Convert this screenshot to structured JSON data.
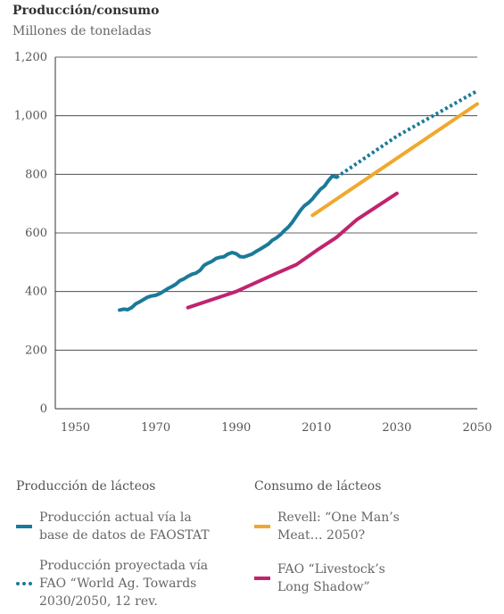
{
  "header": {
    "title": "Producción/consumo",
    "subtitle": "Millones de toneladas"
  },
  "colors": {
    "production": "#1a7a99",
    "revell": "#f0a92c",
    "fao_livestock": "#c0246e",
    "axis": "#333333",
    "grid": "#333333"
  },
  "chart_data": {
    "type": "line",
    "title": "Producción/consumo",
    "ylabel": "Millones de toneladas",
    "xlabel": "",
    "xlim": [
      1945,
      2050
    ],
    "ylim": [
      0,
      1200
    ],
    "x_ticks": [
      "1950",
      "1970",
      "1990",
      "2010",
      "2030",
      "2050"
    ],
    "y_ticks": [
      "0",
      "200",
      "400",
      "600",
      "800",
      "1,000",
      "1,200"
    ],
    "grid": "horizontal",
    "series": [
      {
        "name": "Producción actual vía la base de datos de FAOSTAT",
        "style": "solid",
        "color": "#1a7a99",
        "points": [
          [
            1961,
            337
          ],
          [
            1962,
            340
          ],
          [
            1963,
            338
          ],
          [
            1964,
            345
          ],
          [
            1965,
            358
          ],
          [
            1966,
            365
          ],
          [
            1967,
            373
          ],
          [
            1968,
            381
          ],
          [
            1969,
            385
          ],
          [
            1970,
            387
          ],
          [
            1971,
            393
          ],
          [
            1972,
            401
          ],
          [
            1973,
            410
          ],
          [
            1974,
            417
          ],
          [
            1975,
            425
          ],
          [
            1976,
            437
          ],
          [
            1977,
            443
          ],
          [
            1978,
            452
          ],
          [
            1979,
            459
          ],
          [
            1980,
            463
          ],
          [
            1981,
            472
          ],
          [
            1982,
            489
          ],
          [
            1983,
            497
          ],
          [
            1984,
            503
          ],
          [
            1985,
            513
          ],
          [
            1986,
            517
          ],
          [
            1987,
            519
          ],
          [
            1988,
            528
          ],
          [
            1989,
            533
          ],
          [
            1990,
            529
          ],
          [
            1991,
            519
          ],
          [
            1992,
            518
          ],
          [
            1993,
            523
          ],
          [
            1994,
            528
          ],
          [
            1995,
            537
          ],
          [
            1996,
            545
          ],
          [
            1997,
            553
          ],
          [
            1998,
            562
          ],
          [
            1999,
            575
          ],
          [
            2000,
            583
          ],
          [
            2001,
            594
          ],
          [
            2002,
            608
          ],
          [
            2003,
            620
          ],
          [
            2004,
            637
          ],
          [
            2005,
            657
          ],
          [
            2006,
            677
          ],
          [
            2007,
            693
          ],
          [
            2008,
            703
          ],
          [
            2009,
            716
          ],
          [
            2010,
            733
          ],
          [
            2011,
            749
          ],
          [
            2012,
            760
          ],
          [
            2013,
            779
          ],
          [
            2014,
            795
          ],
          [
            2015,
            790
          ]
        ]
      },
      {
        "name": "Producción proyectada vía FAO “World Ag. Towards 2030/2050, 12 rev.",
        "style": "dotted",
        "color": "#1a7a99",
        "points": [
          [
            2015,
            790
          ],
          [
            2030,
            930
          ],
          [
            2050,
            1085
          ]
        ]
      },
      {
        "name": "Revell: “One Man’s Meat… 2050?",
        "style": "solid",
        "color": "#f0a92c",
        "points": [
          [
            2009,
            660
          ],
          [
            2050,
            1040
          ]
        ]
      },
      {
        "name": "FAO “Livestock’s Long Shadow”",
        "style": "solid",
        "color": "#c0246e",
        "points": [
          [
            1978,
            345
          ],
          [
            1990,
            400
          ],
          [
            2000,
            462
          ],
          [
            2005,
            492
          ],
          [
            2010,
            540
          ],
          [
            2015,
            585
          ],
          [
            2020,
            645
          ],
          [
            2030,
            735
          ]
        ]
      }
    ]
  },
  "legend": {
    "production_group": "Producción de lácteos",
    "consumption_group": "Consumo de lácteos",
    "items": {
      "actual": "Producción actual vía la\nbase de datos de FAOSTAT",
      "projected": "Producción proyectada vía\nFAO “World Ag. Towards\n2030/2050, 12 rev.",
      "revell": "Revell: “One Man’s\nMeat… 2050?",
      "fao": "FAO “Livestock’s\nLong Shadow”"
    }
  }
}
